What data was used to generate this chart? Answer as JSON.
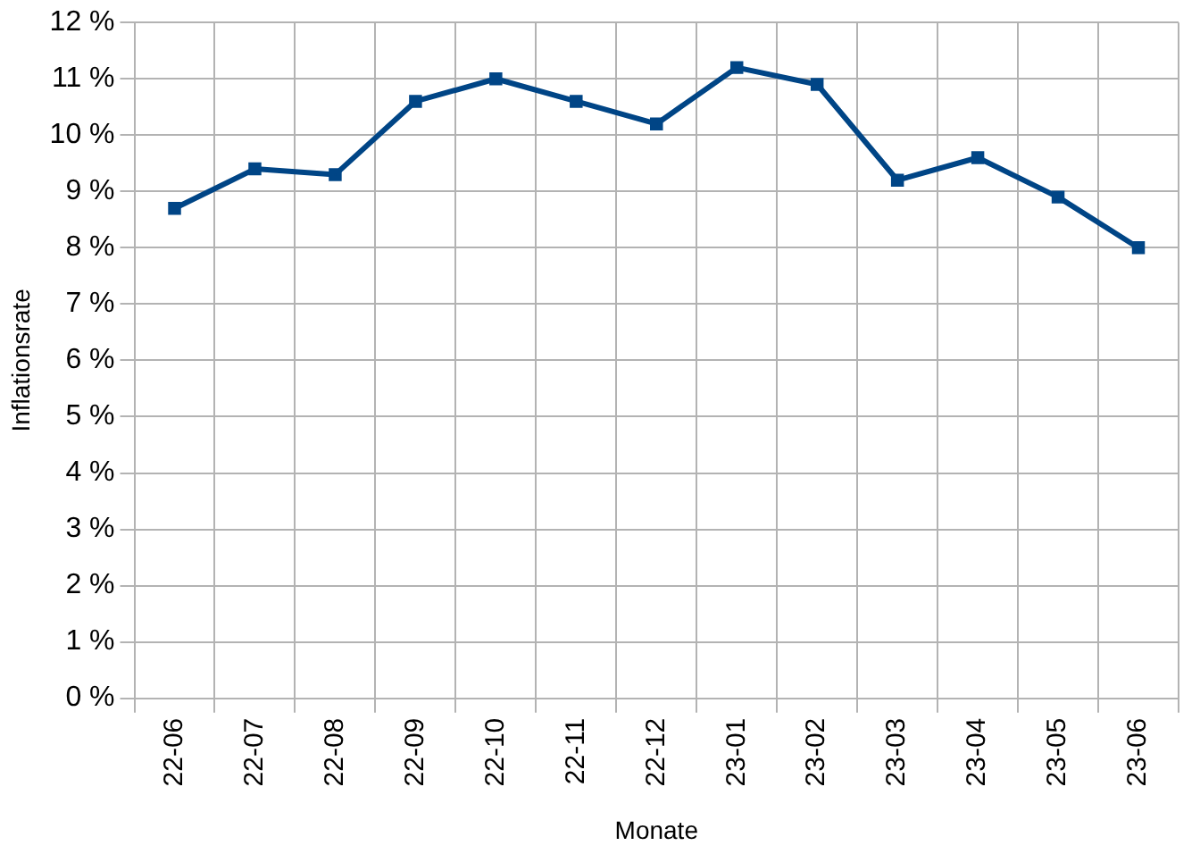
{
  "chart_data": {
    "type": "line",
    "xlabel": "Monate",
    "ylabel": "Inflationsrate",
    "categories": [
      "22-06",
      "22-07",
      "22-08",
      "22-09",
      "22-10",
      "22-11",
      "22-12",
      "23-01",
      "23-02",
      "23-03",
      "23-04",
      "23-05",
      "23-06"
    ],
    "series": [
      {
        "color": "#004586",
        "values": [
          8.7,
          9.4,
          9.3,
          10.6,
          11.0,
          10.6,
          10.2,
          11.2,
          10.9,
          9.2,
          9.6,
          8.9,
          8.0
        ]
      }
    ],
    "ylim": [
      0,
      12
    ],
    "yticks": [
      {
        "value": 0,
        "label": "0 %"
      },
      {
        "value": 1,
        "label": "1 %"
      },
      {
        "value": 2,
        "label": "2 %"
      },
      {
        "value": 3,
        "label": "3 %"
      },
      {
        "value": 4,
        "label": "4 %"
      },
      {
        "value": 5,
        "label": "5 %"
      },
      {
        "value": 6,
        "label": "6 %"
      },
      {
        "value": 7,
        "label": "7 %"
      },
      {
        "value": 8,
        "label": "8 %"
      },
      {
        "value": 9,
        "label": "9 %"
      },
      {
        "value": 10,
        "label": "10 %"
      },
      {
        "value": 11,
        "label": "11 %"
      },
      {
        "value": 12,
        "label": "12 %"
      }
    ],
    "grid": true,
    "marker": "square",
    "line_style": "solid",
    "legend": false
  }
}
